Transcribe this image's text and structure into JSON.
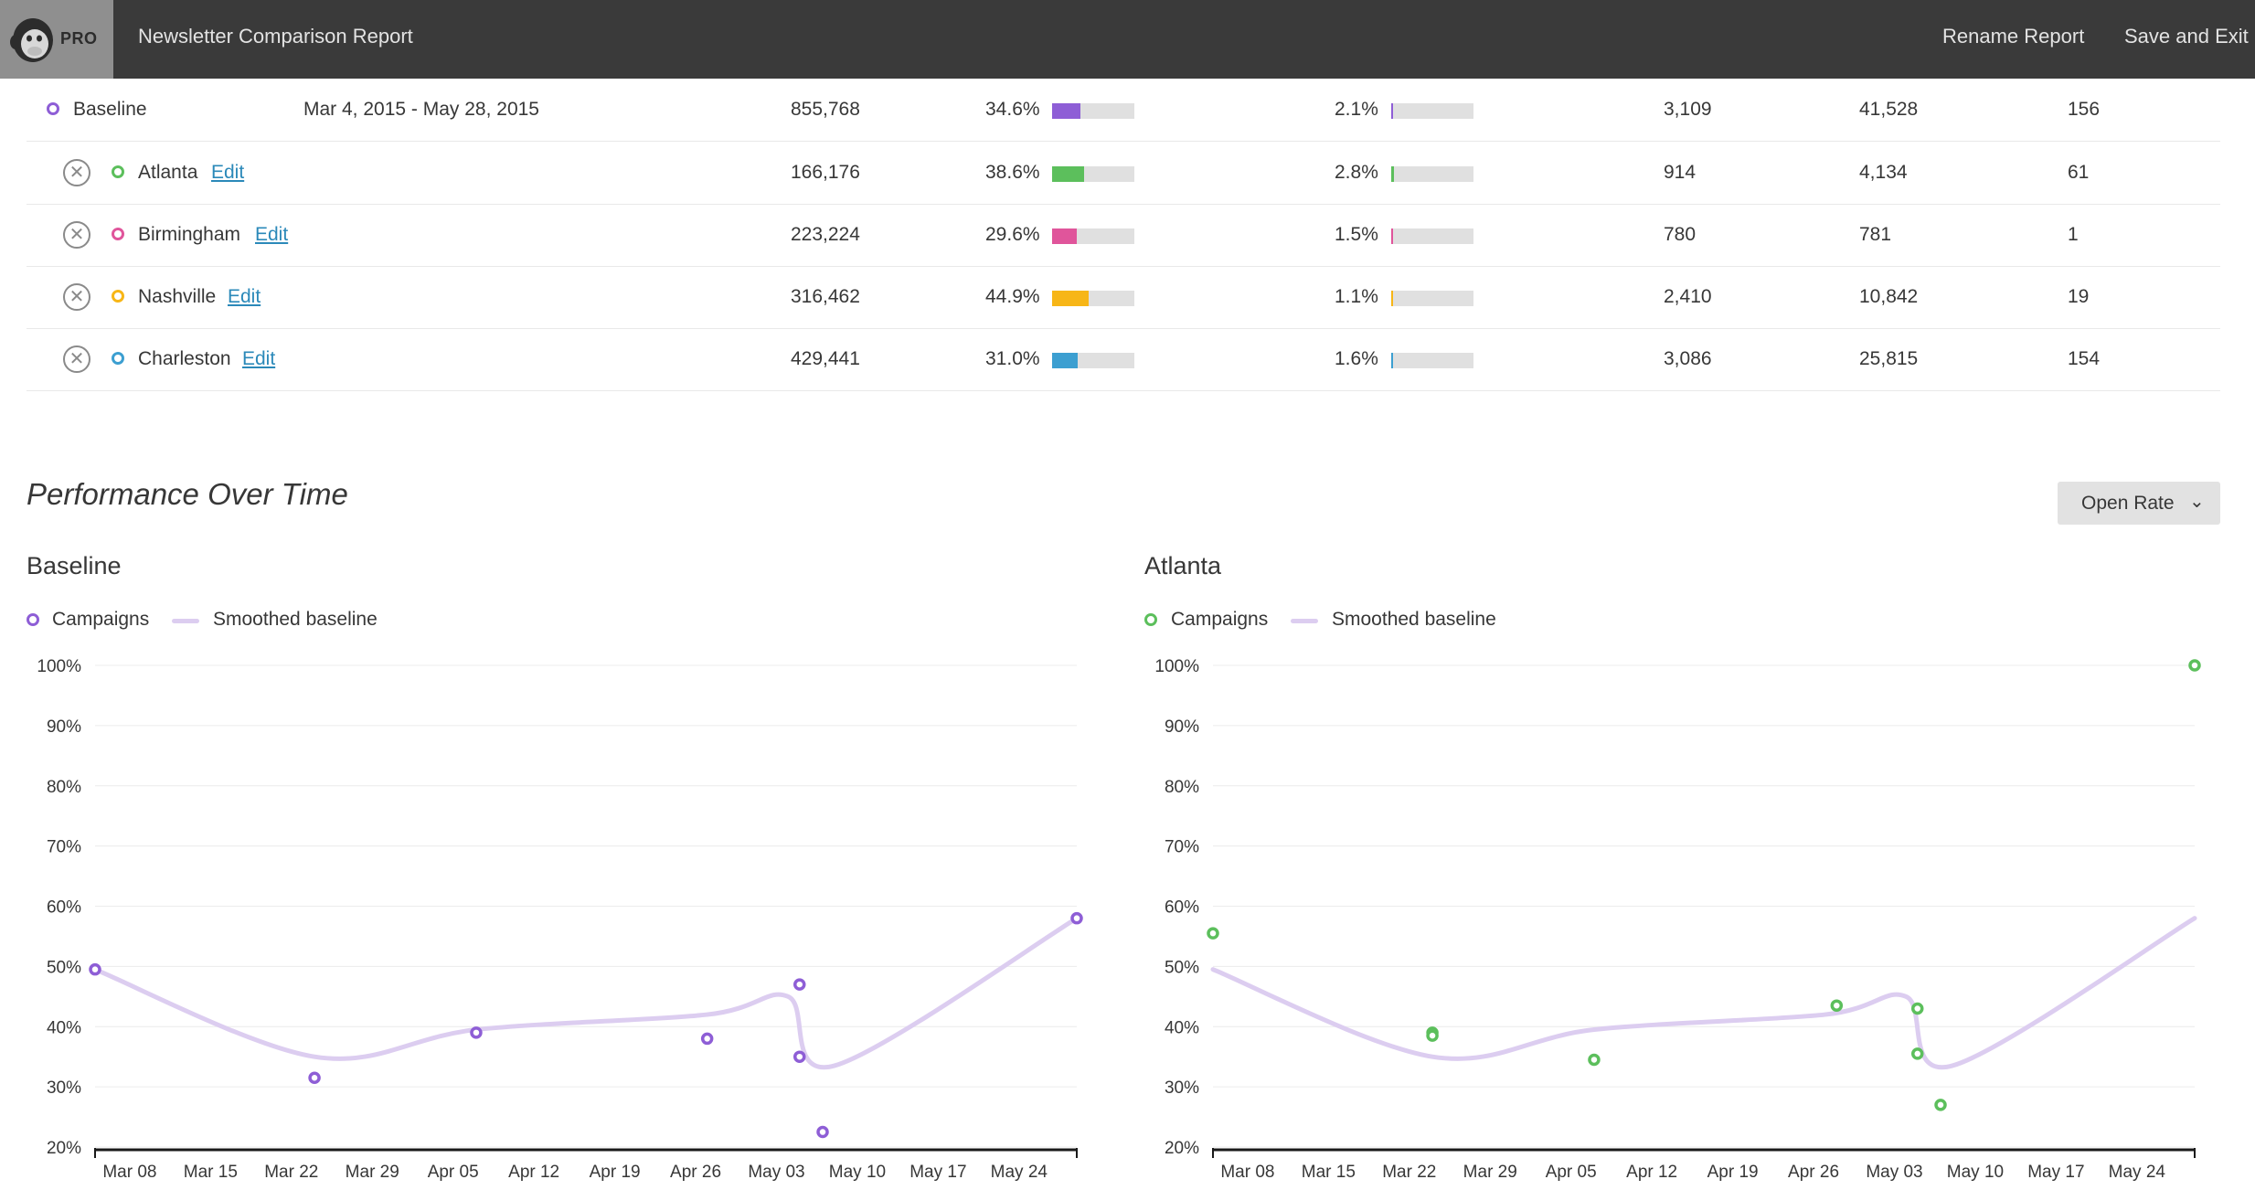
{
  "topbar": {
    "logo_badge": "PRO",
    "title": "Newsletter Comparison Report",
    "rename_label": "Rename Report",
    "save_exit_label": "Save and Exit"
  },
  "table": {
    "rows": [
      {
        "name": "Baseline",
        "date_range": "Mar 4, 2015 - May 28, 2015",
        "recipients": "855,768",
        "open_rate": "34.6%",
        "open_fill": 0.346,
        "click_rate": "2.1%",
        "click_fill": 0.021,
        "col5": "3,109",
        "col6": "41,528",
        "col7": "156",
        "color": "#8e5ed6"
      },
      {
        "name": "Atlanta",
        "edit_label": "Edit",
        "recipients": "166,176",
        "open_rate": "38.6%",
        "open_fill": 0.386,
        "click_rate": "2.8%",
        "click_fill": 0.028,
        "col5": "914",
        "col6": "4,134",
        "col7": "61",
        "color": "#5cbf5c"
      },
      {
        "name": "Birmingham",
        "edit_label": "Edit",
        "recipients": "223,224",
        "open_rate": "29.6%",
        "open_fill": 0.296,
        "click_rate": "1.5%",
        "click_fill": 0.015,
        "col5": "780",
        "col6": "781",
        "col7": "1",
        "color": "#e0559b"
      },
      {
        "name": "Nashville",
        "edit_label": "Edit",
        "recipients": "316,462",
        "open_rate": "44.9%",
        "open_fill": 0.449,
        "click_rate": "1.1%",
        "click_fill": 0.011,
        "col5": "2,410",
        "col6": "10,842",
        "col7": "19",
        "color": "#f7b617"
      },
      {
        "name": "Charleston",
        "edit_label": "Edit",
        "recipients": "429,441",
        "open_rate": "31.0%",
        "open_fill": 0.31,
        "click_rate": "1.6%",
        "click_fill": 0.016,
        "col5": "3,086",
        "col6": "25,815",
        "col7": "154",
        "color": "#3c9fd1"
      }
    ]
  },
  "performance": {
    "title": "Performance Over Time",
    "metric_select": "Open Rate"
  },
  "chart_data": [
    {
      "type": "scatter",
      "title": "Baseline",
      "legend": [
        "Campaigns",
        "Smoothed baseline"
      ],
      "color": "#8e5ed6",
      "smooth_color": "#dccdf0",
      "x_ticks": [
        "Mar 08",
        "Mar 15",
        "Mar 22",
        "Mar 29",
        "Apr 05",
        "Apr 12",
        "Apr 19",
        "Apr 26",
        "May 03",
        "May 10",
        "May 17",
        "May 24"
      ],
      "y_ticks": [
        "20%",
        "30%",
        "40%",
        "50%",
        "60%",
        "70%",
        "80%",
        "90%",
        "100%"
      ],
      "ylim": [
        20,
        100
      ],
      "xlim": [
        "2015-03-05",
        "2015-05-29"
      ],
      "points": [
        {
          "x": "2015-03-05",
          "y": 49.5
        },
        {
          "x": "2015-03-24",
          "y": 31.5
        },
        {
          "x": "2015-04-07",
          "y": 39.0
        },
        {
          "x": "2015-04-27",
          "y": 38.0
        },
        {
          "x": "2015-05-05",
          "y": 47.0
        },
        {
          "x": "2015-05-05",
          "y": 35.0
        },
        {
          "x": "2015-05-07",
          "y": 22.5
        },
        {
          "x": "2015-05-29",
          "y": 58.0
        }
      ],
      "smoothed": [
        {
          "x": "2015-03-05",
          "y": 49.5
        },
        {
          "x": "2015-03-24",
          "y": 35.0
        },
        {
          "x": "2015-04-07",
          "y": 39.5
        },
        {
          "x": "2015-04-27",
          "y": 42.0
        },
        {
          "x": "2015-05-04",
          "y": 45.0
        },
        {
          "x": "2015-05-08",
          "y": 33.5
        },
        {
          "x": "2015-05-29",
          "y": 58.0
        }
      ]
    },
    {
      "type": "scatter",
      "title": "Atlanta",
      "legend": [
        "Campaigns",
        "Smoothed baseline"
      ],
      "color": "#5cbf5c",
      "smooth_color": "#dccdf0",
      "x_ticks": [
        "Mar 08",
        "Mar 15",
        "Mar 22",
        "Mar 29",
        "Apr 05",
        "Apr 12",
        "Apr 19",
        "Apr 26",
        "May 03",
        "May 10",
        "May 17",
        "May 24"
      ],
      "y_ticks": [
        "20%",
        "30%",
        "40%",
        "50%",
        "60%",
        "70%",
        "80%",
        "90%",
        "100%"
      ],
      "ylim": [
        20,
        100
      ],
      "xlim": [
        "2015-03-05",
        "2015-05-29"
      ],
      "points": [
        {
          "x": "2015-03-05",
          "y": 55.5
        },
        {
          "x": "2015-03-24",
          "y": 39.0
        },
        {
          "x": "2015-03-24",
          "y": 38.5
        },
        {
          "x": "2015-04-07",
          "y": 34.5
        },
        {
          "x": "2015-04-28",
          "y": 43.5
        },
        {
          "x": "2015-05-05",
          "y": 43.0
        },
        {
          "x": "2015-05-05",
          "y": 35.5
        },
        {
          "x": "2015-05-07",
          "y": 27.0
        },
        {
          "x": "2015-05-29",
          "y": 100.0
        }
      ],
      "smoothed": [
        {
          "x": "2015-03-05",
          "y": 49.5
        },
        {
          "x": "2015-03-24",
          "y": 35.0
        },
        {
          "x": "2015-04-07",
          "y": 39.5
        },
        {
          "x": "2015-04-27",
          "y": 42.0
        },
        {
          "x": "2015-05-04",
          "y": 45.0
        },
        {
          "x": "2015-05-08",
          "y": 33.5
        },
        {
          "x": "2015-05-29",
          "y": 58.0
        }
      ]
    }
  ]
}
